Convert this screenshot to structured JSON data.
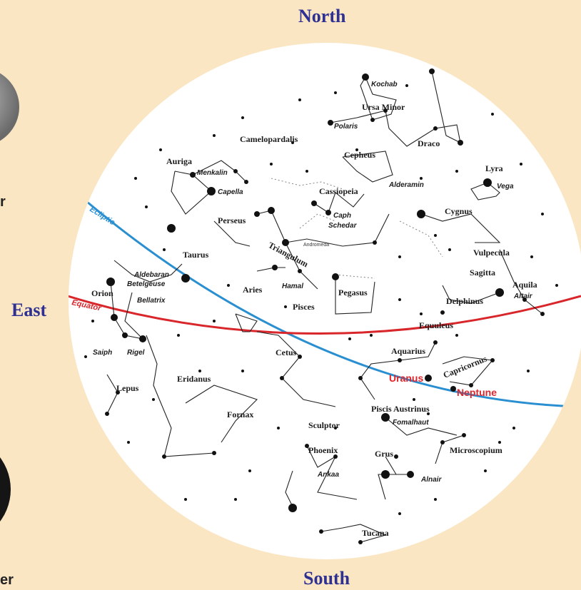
{
  "directions": {
    "north": "North",
    "south": "South",
    "east": "East"
  },
  "side_labels": {
    "r1": "r",
    "r2": "er"
  },
  "lines": {
    "ecliptic": "Ecliptic",
    "equator": "Equator",
    "andromeda": "Andromeda"
  },
  "colors": {
    "background": "#fbe6c4",
    "sky": "#ffffff",
    "ecliptic": "#2a8fd0",
    "equator": "#d8262b",
    "direction_text": "#2e3192",
    "planet_text": "#e0262d"
  },
  "constellations": {
    "kochab": "Kochab",
    "ursa_minor": "Ursa Minor",
    "polaris": "Polaris",
    "camelopardalis": "Camelopardalis",
    "draco": "Draco",
    "cepheus": "Cepheus",
    "auriga": "Auriga",
    "menkalin": "Menkalin",
    "capella": "Capella",
    "lyra": "Lyra",
    "vega": "Vega",
    "alderamin": "Alderamin",
    "cassiopeia": "Cassiopeia",
    "caph": "Caph",
    "schedar": "Schedar",
    "perseus": "Perseus",
    "cygnus": "Cygnus",
    "triangulum": "Triangulum",
    "taurus": "Taurus",
    "vulpecula": "Vulpecula",
    "aldebaran": "Aldebaran",
    "betelgeuse": "Betelgeuse",
    "sagitta": "Sagitta",
    "aries": "Aries",
    "hamal": "Hamal",
    "pegasus": "Pegasus",
    "aquila": "Aquila",
    "altair": "Altair",
    "orion": "Orion",
    "bellatrix": "Bellatrix",
    "delphinus": "Delphinus",
    "pisces": "Pisces",
    "equuleus": "Equuleus",
    "saiph": "Saiph",
    "rigel": "Rigel",
    "cetus": "Cetus",
    "aquarius": "Aquarius",
    "eridanus": "Eridanus",
    "capricornus": "Capricornus",
    "lepus": "Lepus",
    "fornax": "Fornax",
    "piscis_austrinus": "Piscis Austrinus",
    "fomalhaut": "Fomalhaut",
    "sculptor": "Sculptor",
    "phoenix": "Phoenix",
    "grus": "Grus",
    "microscopium": "Microscopium",
    "ankaa": "Ankaa",
    "alnair": "Alnair",
    "tucana": "Tucana"
  },
  "planets": {
    "uranus": "Uranus",
    "neptune": "Neptune"
  }
}
